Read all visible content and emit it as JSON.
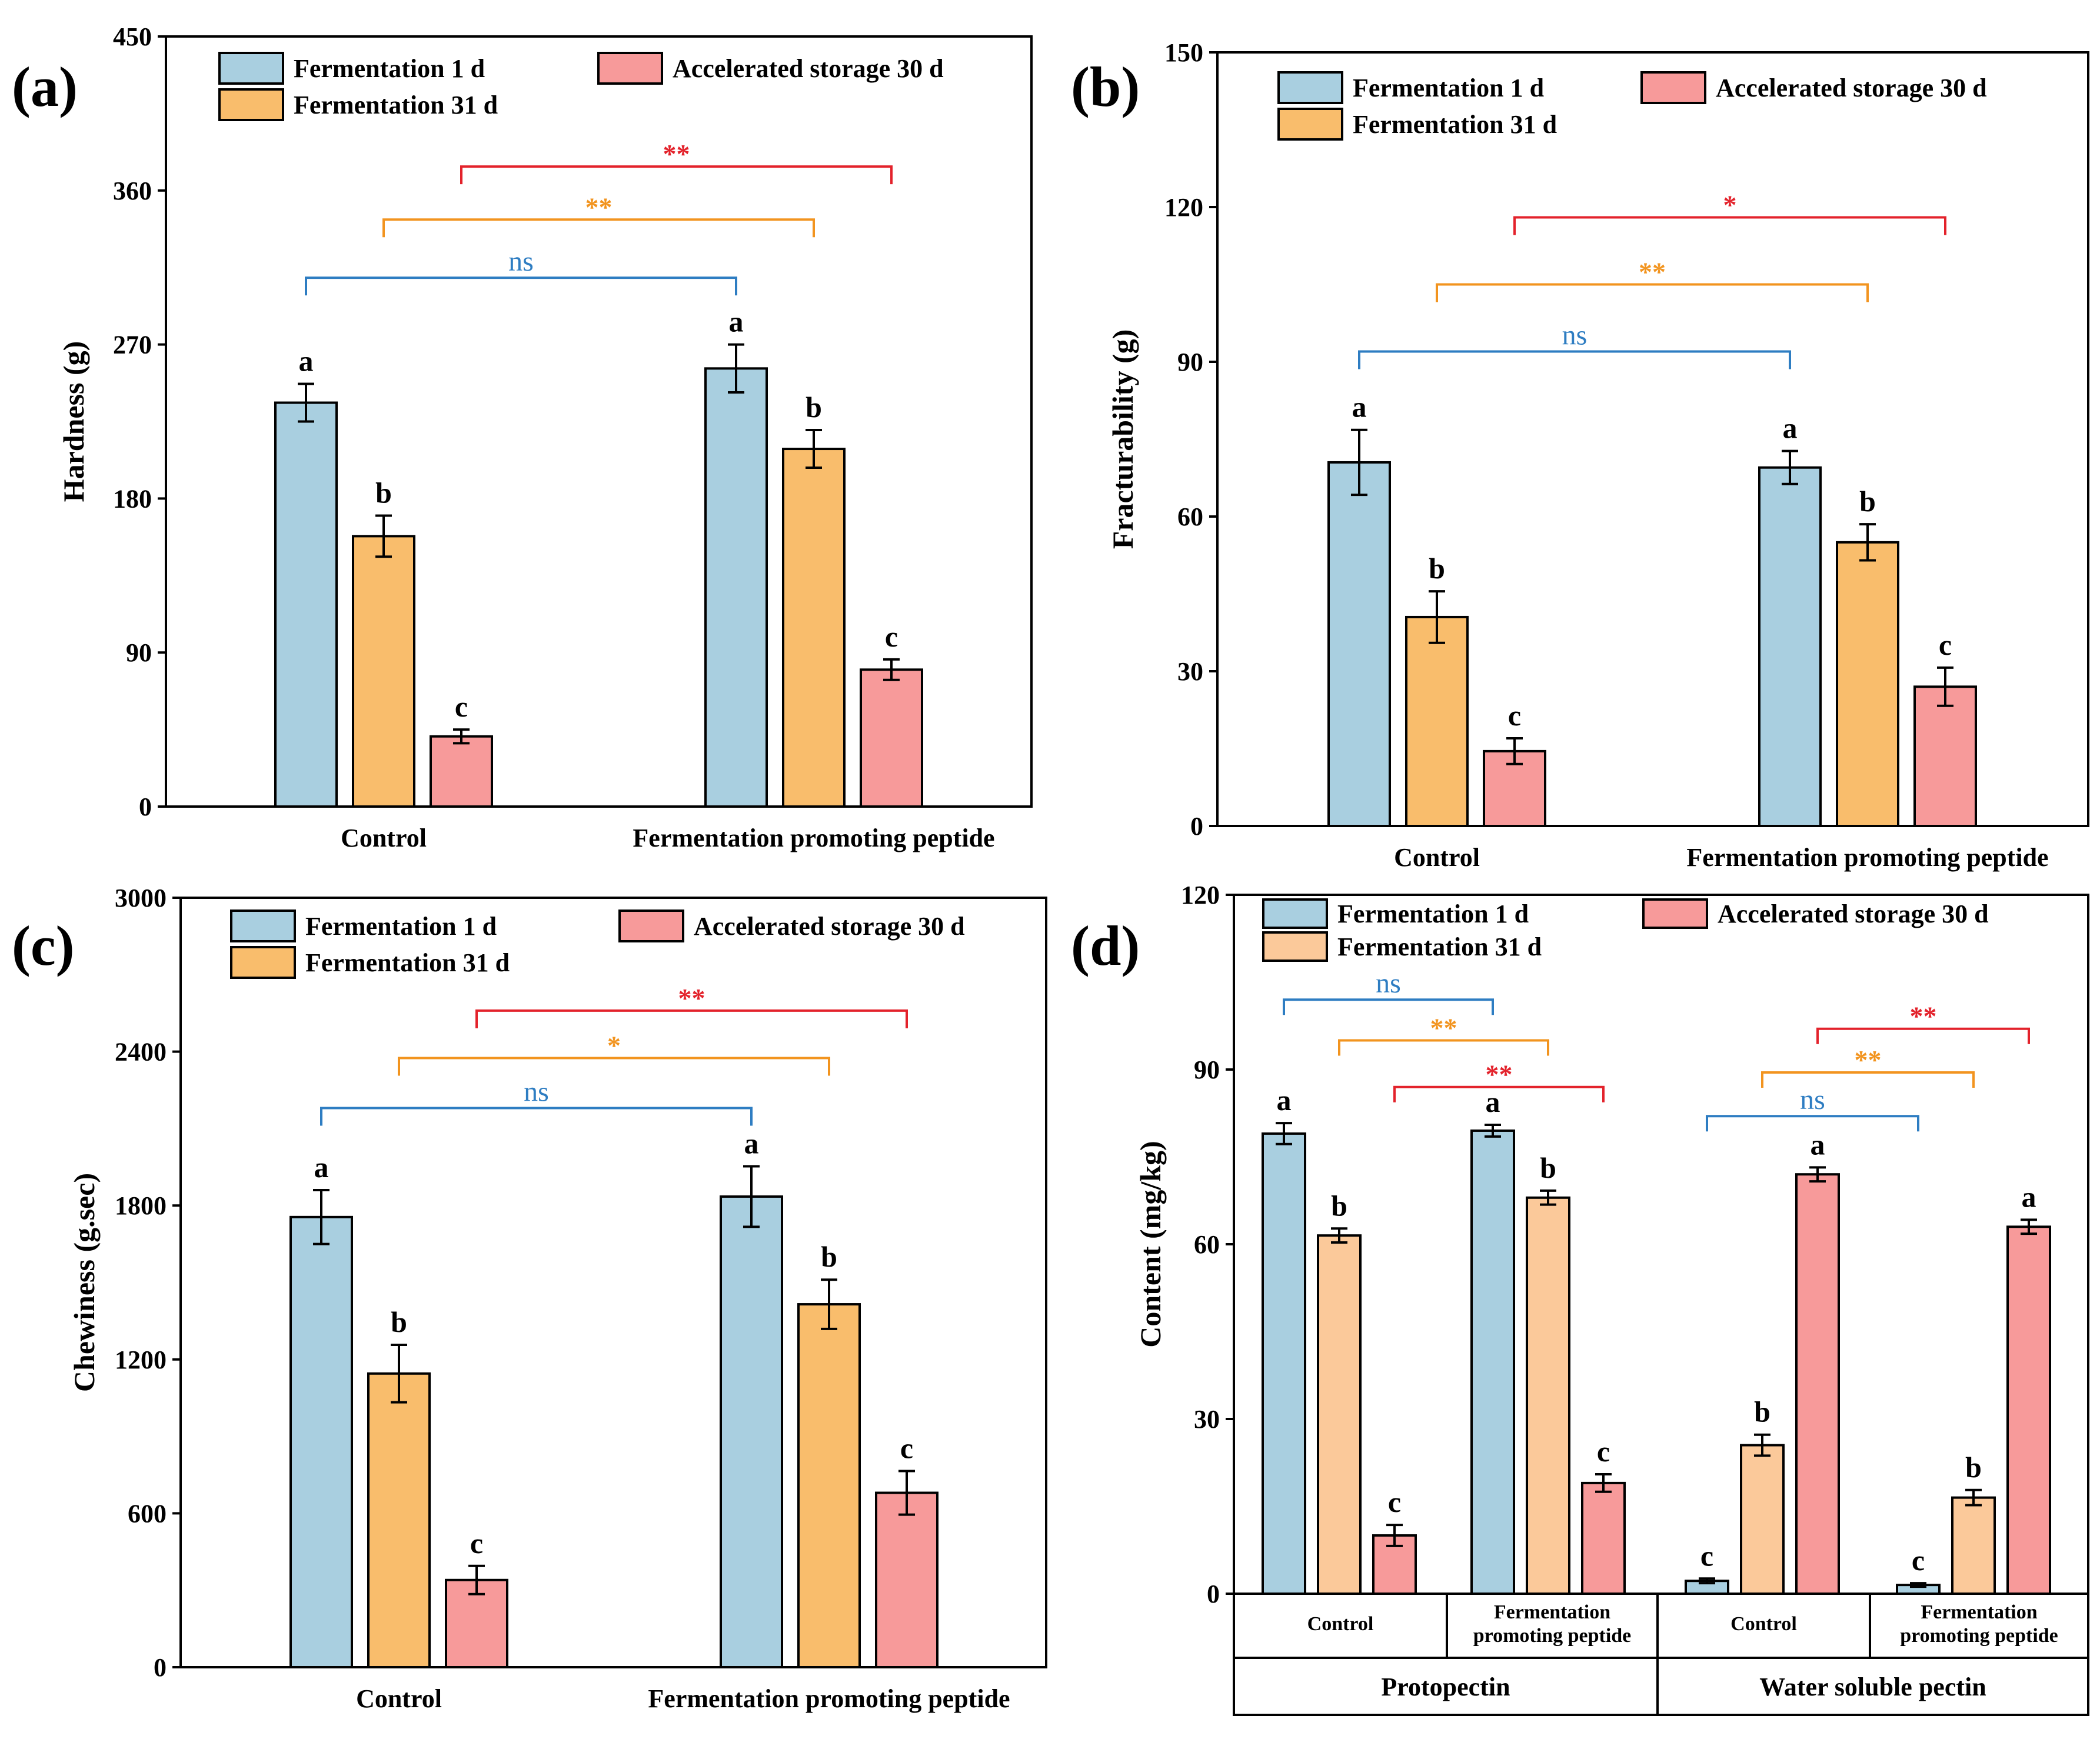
{
  "colors": {
    "fermentation_1d": "#a9cfe0",
    "fermentation_31d": "#f9bd6c",
    "fermentation_31d_light": "#fbc99a",
    "accelerated_30d": "#f79a9a",
    "sig_blue": "#2e7dc2",
    "sig_orange": "#f2941f",
    "sig_red": "#e3222b"
  },
  "chart_data": [
    {
      "panel": "(a)",
      "type": "bar",
      "ylabel": "Hardness (g)",
      "ylim": [
        0,
        450
      ],
      "yticks": [
        "0",
        "90",
        "180",
        "270",
        "360",
        "450"
      ],
      "categories": [
        "Control",
        "Fermentation promoting peptide"
      ],
      "legend": [
        "Fermentation 1 d",
        "Fermentation 31 d",
        "Accelerated storage 30 d"
      ],
      "series": [
        {
          "name": "Fermentation 1 d",
          "values": [
            236,
            256
          ],
          "errors": [
            11,
            14
          ],
          "letters": [
            "a",
            "a"
          ]
        },
        {
          "name": "Fermentation 31 d",
          "values": [
            158,
            209
          ],
          "errors": [
            12,
            11
          ],
          "letters": [
            "b",
            "b"
          ]
        },
        {
          "name": "Accelerated storage 30 d",
          "values": [
            41,
            80
          ],
          "errors": [
            4,
            6
          ],
          "letters": [
            "c",
            "c"
          ]
        }
      ],
      "significance": [
        {
          "label": "ns",
          "series": 0,
          "level": 309
        },
        {
          "label": "**",
          "series": 1,
          "level": 343
        },
        {
          "label": "**",
          "series": 2,
          "level": 374
        }
      ]
    },
    {
      "panel": "(b)",
      "type": "bar",
      "ylabel": "Fracturability (g)",
      "ylim": [
        0,
        150
      ],
      "yticks": [
        "0",
        "30",
        "60",
        "90",
        "120",
        "150"
      ],
      "categories": [
        "Control",
        "Fermentation promoting peptide"
      ],
      "legend": [
        "Fermentation 1 d",
        "Fermentation 31 d",
        "Accelerated storage 30 d"
      ],
      "series": [
        {
          "name": "Fermentation 1 d",
          "values": [
            70.5,
            69.5
          ],
          "errors": [
            6.3,
            3.2
          ],
          "letters": [
            "a",
            "a"
          ]
        },
        {
          "name": "Fermentation 31 d",
          "values": [
            40.5,
            55
          ],
          "errors": [
            5,
            3.5
          ],
          "letters": [
            "b",
            "b"
          ]
        },
        {
          "name": "Accelerated storage 30 d",
          "values": [
            14.5,
            27
          ],
          "errors": [
            2.5,
            3.7
          ],
          "letters": [
            "c",
            "c"
          ]
        }
      ],
      "significance": [
        {
          "label": "ns",
          "series": 0,
          "level": 92
        },
        {
          "label": "**",
          "series": 1,
          "level": 105
        },
        {
          "label": "*",
          "series": 2,
          "level": 118
        }
      ]
    },
    {
      "panel": "(c)",
      "type": "bar",
      "ylabel": "Chewiness (g.sec)",
      "ylim": [
        0,
        3000
      ],
      "yticks": [
        "0",
        "600",
        "1200",
        "1800",
        "2400",
        "3000"
      ],
      "categories": [
        "Control",
        "Fermentation promoting peptide"
      ],
      "legend": [
        "Fermentation 1 d",
        "Fermentation 31 d",
        "Accelerated storage 30 d"
      ],
      "series": [
        {
          "name": "Fermentation 1 d",
          "values": [
            1755,
            1835
          ],
          "errors": [
            105,
            118
          ],
          "letters": [
            "a",
            "a"
          ]
        },
        {
          "name": "Fermentation 31 d",
          "values": [
            1145,
            1415
          ],
          "errors": [
            112,
            96
          ],
          "letters": [
            "b",
            "b"
          ]
        },
        {
          "name": "Accelerated storage 30 d",
          "values": [
            340,
            680
          ],
          "errors": [
            55,
            85
          ],
          "letters": [
            "c",
            "c"
          ]
        }
      ],
      "significance": [
        {
          "label": "ns",
          "series": 0,
          "level": 2180
        },
        {
          "label": "*",
          "series": 1,
          "level": 2375
        },
        {
          "label": "**",
          "series": 2,
          "level": 2560
        }
      ]
    },
    {
      "panel": "(d)",
      "type": "bar",
      "ylabel": "Content (mg/kg)",
      "ylim": [
        0,
        120
      ],
      "yticks": [
        "0",
        "30",
        "60",
        "90",
        "120"
      ],
      "groups": [
        "Protopectin",
        "Water soluble pectin"
      ],
      "subgroups": [
        "Control",
        "Fermentation\npromoting peptide",
        "Control",
        "Fermentation\npromoting peptide"
      ],
      "legend": [
        "Fermentation 1 d",
        "Fermentation 31 d",
        "Accelerated storage 30 d"
      ],
      "series": [
        {
          "name": "Fermentation 1 d",
          "values": [
            79,
            79.5,
            2.2,
            1.5
          ],
          "errors": [
            1.8,
            1.0,
            0.4,
            0.3
          ],
          "letters": [
            "a",
            "a",
            "c",
            "c"
          ]
        },
        {
          "name": "Fermentation 31 d",
          "values": [
            61.5,
            68,
            25.5,
            16.5
          ],
          "errors": [
            1.2,
            1.2,
            1.8,
            1.3
          ],
          "letters": [
            "b",
            "b",
            "b",
            "b"
          ]
        },
        {
          "name": "Accelerated storage 30 d",
          "values": [
            10,
            19,
            72,
            63
          ],
          "errors": [
            1.8,
            1.5,
            1.2,
            1.2
          ],
          "letters": [
            "c",
            "c",
            "a",
            "a"
          ]
        }
      ],
      "significance": [
        {
          "label": "ns",
          "series": 0,
          "from": 0,
          "to": 1,
          "level": 102
        },
        {
          "label": "**",
          "series": 1,
          "from": 0,
          "to": 1,
          "level": 95
        },
        {
          "label": "**",
          "series": 2,
          "from": 0,
          "to": 1,
          "level": 87
        },
        {
          "label": "ns",
          "series": 0,
          "from": 2,
          "to": 3,
          "level": 82
        },
        {
          "label": "**",
          "series": 1,
          "from": 2,
          "to": 3,
          "level": 89.5
        },
        {
          "label": "**",
          "series": 2,
          "from": 2,
          "to": 3,
          "level": 97
        }
      ]
    }
  ]
}
